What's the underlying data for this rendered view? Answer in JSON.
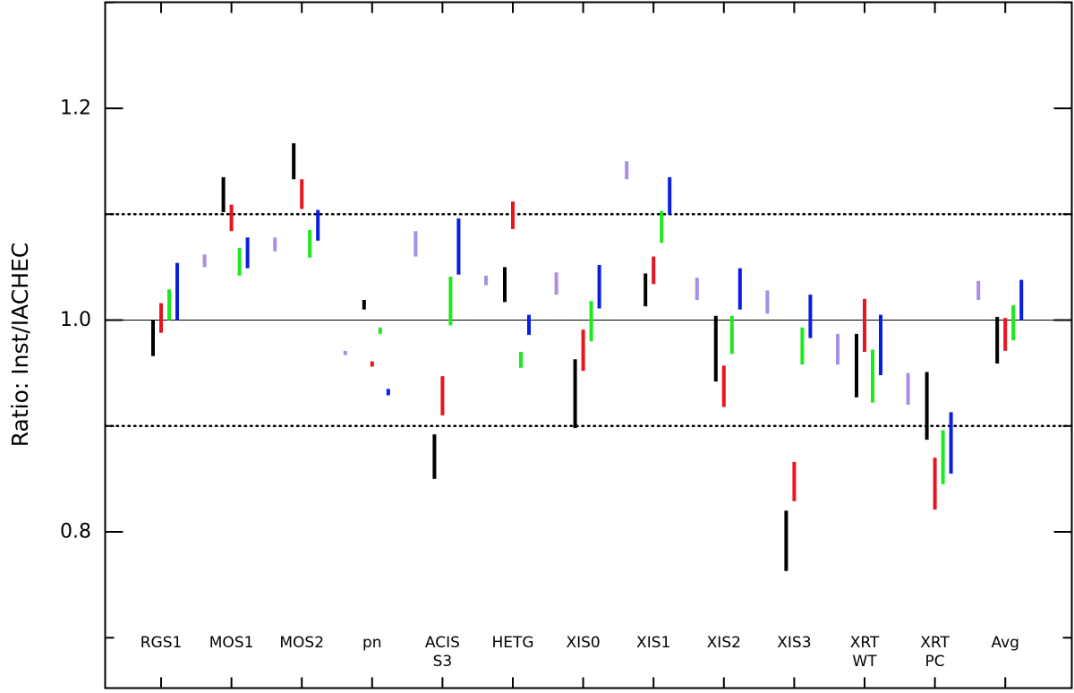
{
  "chart_data": {
    "type": "range-bars",
    "ylabel": "Ratio: Inst/IACHEC",
    "ylim": [
      0.685,
      1.305
    ],
    "y_ticks": [
      {
        "value": 0.8,
        "label": "0.8"
      },
      {
        "value": 1.0,
        "label": "1.0"
      },
      {
        "value": 1.2,
        "label": "1.2"
      }
    ],
    "reference_lines": [
      {
        "value": 1.0,
        "style": "solid"
      },
      {
        "value": 1.1,
        "style": "dotted"
      },
      {
        "value": 0.9,
        "style": "dotted"
      }
    ],
    "categories": [
      {
        "lines": [
          "RGS1"
        ]
      },
      {
        "lines": [
          "MOS1"
        ]
      },
      {
        "lines": [
          "MOS2"
        ]
      },
      {
        "lines": [
          "pn"
        ]
      },
      {
        "lines": [
          "ACIS",
          "S3"
        ]
      },
      {
        "lines": [
          "HETG"
        ]
      },
      {
        "lines": [
          "XIS0"
        ]
      },
      {
        "lines": [
          "XIS1"
        ]
      },
      {
        "lines": [
          "XIS2"
        ]
      },
      {
        "lines": [
          "XIS3"
        ]
      },
      {
        "lines": [
          "XRT",
          "WT"
        ]
      },
      {
        "lines": [
          "XRT",
          "PC"
        ]
      },
      {
        "lines": [
          "Avg"
        ]
      }
    ],
    "series": [
      {
        "color": "#a98ee8",
        "ranges": [
          null,
          [
            1.05,
            1.062
          ],
          [
            1.065,
            1.078
          ],
          [
            0.967,
            0.971
          ],
          [
            1.06,
            1.084
          ],
          [
            1.033,
            1.042
          ],
          [
            1.024,
            1.045
          ],
          [
            1.133,
            1.15
          ],
          [
            1.019,
            1.04
          ],
          [
            1.006,
            1.028
          ],
          [
            0.958,
            0.987
          ],
          [
            0.92,
            0.95
          ],
          [
            1.019,
            1.037
          ]
        ]
      },
      {
        "color": "#000000",
        "ranges": [
          [
            0.966,
            1.0
          ],
          [
            1.102,
            1.135
          ],
          [
            1.133,
            1.167
          ],
          [
            1.01,
            1.019
          ],
          [
            0.85,
            0.892
          ],
          [
            1.017,
            1.05
          ],
          [
            0.898,
            0.963
          ],
          [
            1.013,
            1.044
          ],
          [
            0.942,
            1.004
          ],
          [
            0.763,
            0.82
          ],
          [
            0.927,
            0.987
          ],
          [
            0.887,
            0.951
          ],
          [
            0.959,
            1.003
          ]
        ]
      },
      {
        "color": "#e8141e",
        "ranges": [
          [
            0.988,
            1.016
          ],
          [
            1.084,
            1.109
          ],
          [
            1.105,
            1.133
          ],
          [
            0.956,
            0.961
          ],
          [
            0.91,
            0.947
          ],
          [
            1.086,
            1.112
          ],
          [
            0.952,
            0.991
          ],
          [
            1.034,
            1.06
          ],
          [
            0.918,
            0.957
          ],
          [
            0.829,
            0.866
          ],
          [
            0.97,
            1.02
          ],
          [
            0.821,
            0.87
          ],
          [
            0.971,
            1.002
          ]
        ]
      },
      {
        "color": "#1ee81e",
        "ranges": [
          [
            1.0,
            1.029
          ],
          [
            1.042,
            1.068
          ],
          [
            1.059,
            1.085
          ],
          [
            0.987,
            0.993
          ],
          [
            0.995,
            1.041
          ],
          [
            0.955,
            0.97
          ],
          [
            0.98,
            1.018
          ],
          [
            1.073,
            1.103
          ],
          [
            0.968,
            1.004
          ],
          [
            0.958,
            0.993
          ],
          [
            0.922,
            0.972
          ],
          [
            0.845,
            0.896
          ],
          [
            0.981,
            1.014
          ]
        ]
      },
      {
        "color": "#0a1ee0",
        "ranges": [
          [
            1.0,
            1.054
          ],
          [
            1.049,
            1.078
          ],
          [
            1.075,
            1.104
          ],
          [
            0.929,
            0.935
          ],
          [
            1.043,
            1.096
          ],
          [
            0.986,
            1.005
          ],
          [
            1.011,
            1.052
          ],
          [
            1.1,
            1.135
          ],
          [
            1.01,
            1.049
          ],
          [
            0.983,
            1.024
          ],
          [
            0.948,
            1.005
          ],
          [
            0.855,
            0.913
          ],
          [
            1.0,
            1.038
          ]
        ]
      }
    ]
  }
}
